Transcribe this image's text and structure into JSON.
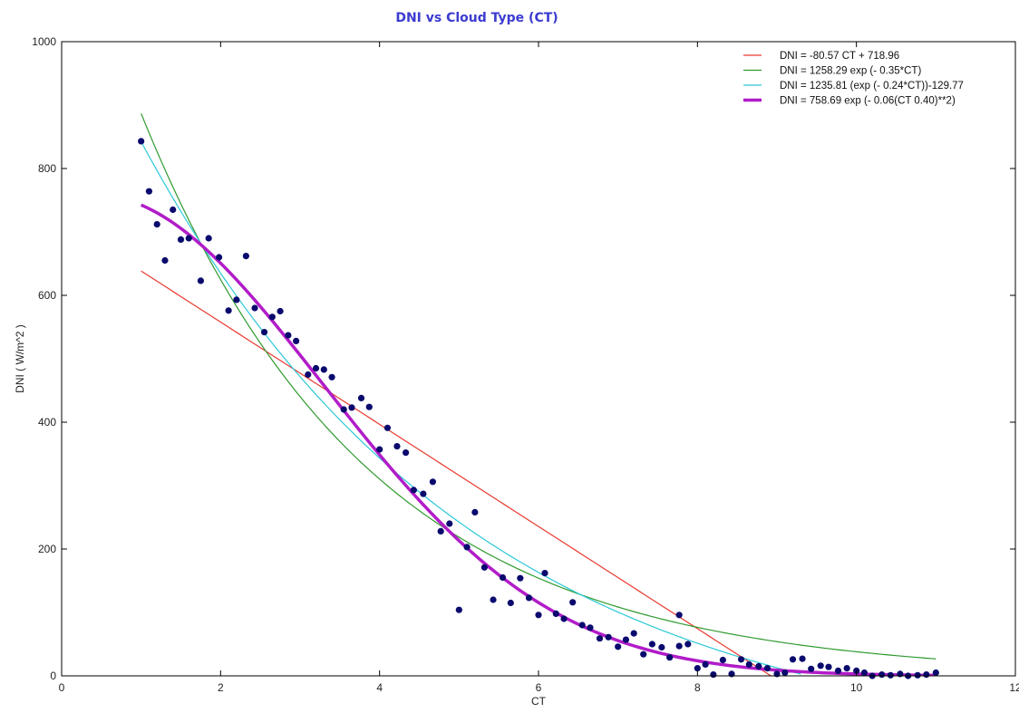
{
  "chart_data": {
    "type": "scatter",
    "title": "DNI vs Cloud Type (CT)",
    "title_color": "#3b3bd1",
    "xlabel": "CT",
    "ylabel": "DNI ( W/m^2 )",
    "xlim": [
      0,
      12
    ],
    "ylim": [
      0,
      1000
    ],
    "xticks": [
      0,
      2,
      4,
      6,
      8,
      10,
      12
    ],
    "xtick_labels": [
      "0",
      "2",
      "4",
      "6",
      "8",
      "10",
      "12"
    ],
    "yticks": [
      0,
      200,
      400,
      600,
      800,
      1000
    ],
    "ytick_labels": [
      "0",
      "200",
      "400",
      "600",
      "800",
      "1000"
    ],
    "grid": false,
    "legend_position": "top-right",
    "points": {
      "color": "#0a0a6e",
      "x": [
        1.0,
        1.1,
        1.2,
        1.3,
        1.4,
        1.5,
        1.6,
        1.75,
        1.85,
        1.98,
        2.1,
        2.2,
        2.32,
        2.43,
        2.55,
        2.65,
        2.75,
        2.85,
        2.95,
        3.1,
        3.2,
        3.3,
        3.4,
        3.55,
        3.65,
        3.77,
        3.87,
        4.0,
        4.1,
        4.22,
        4.33,
        4.43,
        4.55,
        4.67,
        4.77,
        4.88,
        5.0,
        5.1,
        5.2,
        5.32,
        5.43,
        5.55,
        5.65,
        5.77,
        5.88,
        6.0,
        6.08,
        6.22,
        6.32,
        6.43,
        6.55,
        6.65,
        6.77,
        6.88,
        7.0,
        7.1,
        7.2,
        7.32,
        7.43,
        7.55,
        7.65,
        7.77,
        7.77,
        7.88,
        8.0,
        8.1,
        8.2,
        8.32,
        8.43,
        8.55,
        8.65,
        8.77,
        8.88,
        9.0,
        9.1,
        9.2,
        9.32,
        9.43,
        9.55,
        9.65,
        9.77,
        9.88,
        10.0,
        10.1,
        10.2,
        10.32,
        10.43,
        10.55,
        10.65,
        10.77,
        10.88,
        11.0
      ],
      "y": [
        843,
        764,
        712,
        655,
        735,
        688,
        690,
        623,
        690,
        660,
        576,
        593,
        662,
        580,
        542,
        566,
        575,
        537,
        528,
        475,
        485,
        483,
        471,
        420,
        423,
        438,
        424,
        357,
        391,
        362,
        352,
        293,
        287,
        306,
        228,
        240,
        104,
        203,
        258,
        171,
        120,
        155,
        115,
        154,
        123,
        96,
        162,
        98,
        90,
        116,
        80,
        76,
        59,
        61,
        46,
        57,
        67,
        34,
        50,
        45,
        29,
        47,
        96,
        50,
        12,
        18,
        2,
        25,
        3,
        26,
        18,
        15,
        12,
        3,
        5,
        26,
        27,
        11,
        16,
        14,
        8,
        12,
        8,
        5,
        0,
        2,
        1,
        3,
        0,
        1,
        2,
        5
      ]
    },
    "series": [
      {
        "name": "DNI = -80.57 CT + 718.96",
        "color": "#e8392f",
        "model": "linear",
        "params": [
          -80.57,
          718.96
        ],
        "x_range": [
          1.0,
          9.0
        ],
        "width": 1.2
      },
      {
        "name": "DNI = 1258.29 exp (- 0.35*CT)",
        "color": "#2e9a2e",
        "model": "exp",
        "params": [
          1258.29,
          0.35
        ],
        "x_range": [
          1.0,
          11.0
        ],
        "width": 1.2
      },
      {
        "name": "DNI = 1235.81 (exp (- 0.24*CT))-129.77",
        "color": "#2bc8d6",
        "model": "exp_offset",
        "params": [
          1235.81,
          0.24,
          -129.77
        ],
        "x_range": [
          1.0,
          9.3
        ],
        "width": 1.2
      },
      {
        "name": "DNI = 758.69 exp (- 0.06(CT 0.40)**2)",
        "color": "#b11cc8",
        "model": "gauss",
        "params": [
          758.69,
          0.06,
          0.4
        ],
        "x_range": [
          1.0,
          11.0
        ],
        "width": 3.5
      }
    ]
  }
}
